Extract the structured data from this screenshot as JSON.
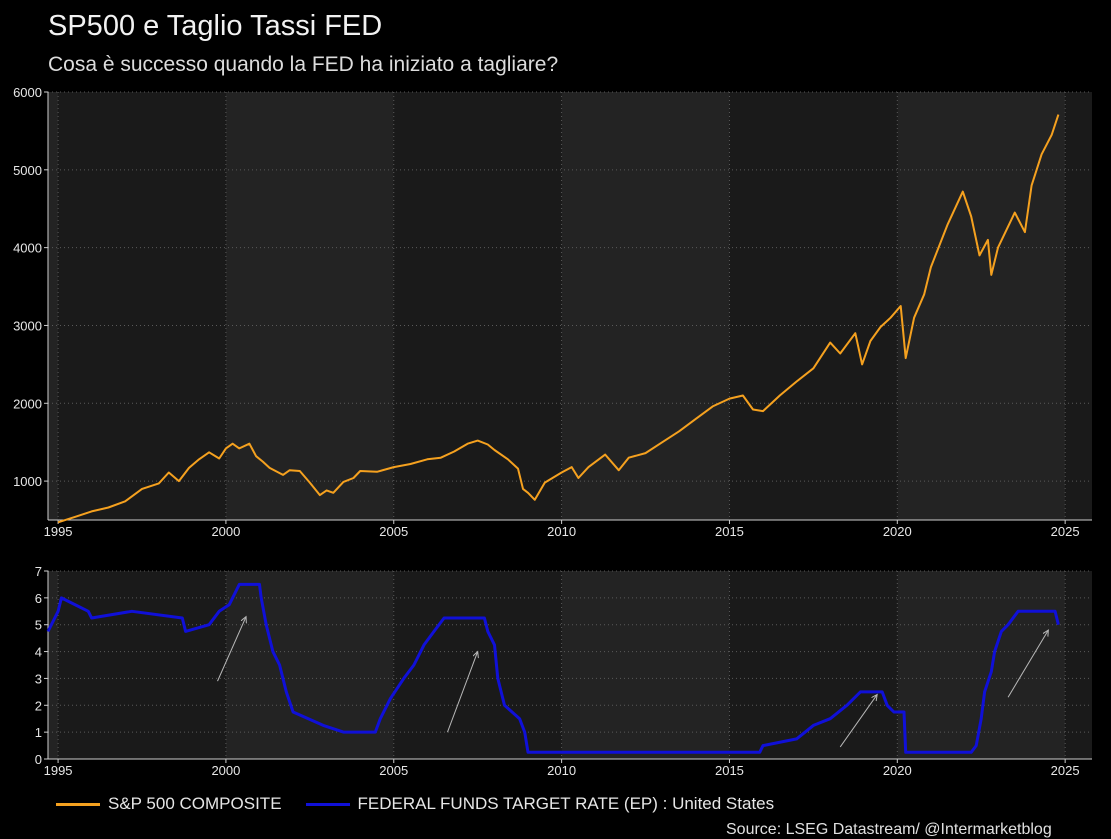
{
  "title": "SP500 e Taglio Tassi FED",
  "subtitle": "Cosa è successo quando la FED ha iniziato a tagliare?",
  "source": "Source: LSEG Datastream/ @Intermarketblog",
  "colors": {
    "sp500": "#f5a11f",
    "fed": "#1010d8",
    "panel_a": "#232323",
    "panel_b": "#1a1a1a",
    "grid": "#5a5a5a"
  },
  "chart_data": [
    {
      "type": "line",
      "panel": "top",
      "x_type": "year",
      "xlim": [
        1994.7,
        2025.8
      ],
      "ylim": [
        500,
        6000
      ],
      "y_ticks": [
        1000,
        2000,
        3000,
        4000,
        5000,
        6000
      ],
      "x_ticks": [
        1995,
        2000,
        2005,
        2010,
        2015,
        2020,
        2025
      ],
      "grid": true,
      "series": [
        {
          "name": "S&P 500 COMPOSITE",
          "color": "#f5a11f",
          "points": [
            [
              1995.0,
              470
            ],
            [
              1995.5,
              540
            ],
            [
              1996.0,
              610
            ],
            [
              1996.5,
              660
            ],
            [
              1997.0,
              740
            ],
            [
              1997.5,
              900
            ],
            [
              1998.0,
              970
            ],
            [
              1998.3,
              1110
            ],
            [
              1998.6,
              1000
            ],
            [
              1998.9,
              1170
            ],
            [
              1999.2,
              1280
            ],
            [
              1999.5,
              1370
            ],
            [
              1999.8,
              1290
            ],
            [
              2000.0,
              1420
            ],
            [
              2000.2,
              1480
            ],
            [
              2000.4,
              1420
            ],
            [
              2000.7,
              1480
            ],
            [
              2000.9,
              1320
            ],
            [
              2001.1,
              1250
            ],
            [
              2001.3,
              1170
            ],
            [
              2001.7,
              1080
            ],
            [
              2001.9,
              1140
            ],
            [
              2002.2,
              1130
            ],
            [
              2002.5,
              980
            ],
            [
              2002.8,
              820
            ],
            [
              2003.0,
              880
            ],
            [
              2003.2,
              850
            ],
            [
              2003.5,
              990
            ],
            [
              2003.8,
              1040
            ],
            [
              2004.0,
              1130
            ],
            [
              2004.5,
              1120
            ],
            [
              2005.0,
              1180
            ],
            [
              2005.5,
              1220
            ],
            [
              2006.0,
              1280
            ],
            [
              2006.4,
              1300
            ],
            [
              2006.8,
              1380
            ],
            [
              2007.2,
              1480
            ],
            [
              2007.5,
              1520
            ],
            [
              2007.8,
              1470
            ],
            [
              2008.0,
              1400
            ],
            [
              2008.4,
              1280
            ],
            [
              2008.7,
              1160
            ],
            [
              2008.85,
              900
            ],
            [
              2009.0,
              850
            ],
            [
              2009.2,
              760
            ],
            [
              2009.5,
              980
            ],
            [
              2010.0,
              1110
            ],
            [
              2010.3,
              1180
            ],
            [
              2010.5,
              1040
            ],
            [
              2010.8,
              1180
            ],
            [
              2011.3,
              1340
            ],
            [
              2011.7,
              1140
            ],
            [
              2012.0,
              1300
            ],
            [
              2012.5,
              1360
            ],
            [
              2013.0,
              1500
            ],
            [
              2013.5,
              1640
            ],
            [
              2014.0,
              1800
            ],
            [
              2014.5,
              1960
            ],
            [
              2015.0,
              2060
            ],
            [
              2015.4,
              2100
            ],
            [
              2015.7,
              1920
            ],
            [
              2016.0,
              1900
            ],
            [
              2016.5,
              2100
            ],
            [
              2017.0,
              2280
            ],
            [
              2017.5,
              2450
            ],
            [
              2018.0,
              2780
            ],
            [
              2018.3,
              2640
            ],
            [
              2018.75,
              2900
            ],
            [
              2018.95,
              2500
            ],
            [
              2019.2,
              2800
            ],
            [
              2019.5,
              2980
            ],
            [
              2019.8,
              3100
            ],
            [
              2020.1,
              3250
            ],
            [
              2020.25,
              2580
            ],
            [
              2020.5,
              3100
            ],
            [
              2020.8,
              3400
            ],
            [
              2021.0,
              3750
            ],
            [
              2021.5,
              4300
            ],
            [
              2021.95,
              4720
            ],
            [
              2022.2,
              4400
            ],
            [
              2022.45,
              3900
            ],
            [
              2022.7,
              4100
            ],
            [
              2022.8,
              3650
            ],
            [
              2023.0,
              4000
            ],
            [
              2023.5,
              4450
            ],
            [
              2023.8,
              4200
            ],
            [
              2024.0,
              4800
            ],
            [
              2024.3,
              5200
            ],
            [
              2024.6,
              5450
            ],
            [
              2024.8,
              5710
            ]
          ]
        }
      ]
    },
    {
      "type": "line",
      "panel": "bottom",
      "x_type": "year",
      "xlim": [
        1994.7,
        2025.8
      ],
      "ylim": [
        0,
        7
      ],
      "y_ticks": [
        0,
        1,
        2,
        3,
        4,
        5,
        6,
        7
      ],
      "x_ticks": [
        1995,
        2000,
        2005,
        2010,
        2015,
        2020,
        2025
      ],
      "grid": true,
      "series": [
        {
          "name": "FEDERAL FUNDS TARGET RATE (EP) : United States",
          "color": "#1010d8",
          "points": [
            [
              1994.7,
              4.75
            ],
            [
              1995.0,
              5.5
            ],
            [
              1995.1,
              6.0
            ],
            [
              1995.5,
              5.75
            ],
            [
              1995.9,
              5.5
            ],
            [
              1996.0,
              5.25
            ],
            [
              1997.2,
              5.5
            ],
            [
              1998.7,
              5.25
            ],
            [
              1998.8,
              4.75
            ],
            [
              1999.5,
              5.0
            ],
            [
              1999.8,
              5.5
            ],
            [
              2000.1,
              5.75
            ],
            [
              2000.4,
              6.5
            ],
            [
              2001.0,
              6.5
            ],
            [
              2001.05,
              6.0
            ],
            [
              2001.2,
              5.0
            ],
            [
              2001.4,
              4.0
            ],
            [
              2001.6,
              3.5
            ],
            [
              2001.8,
              2.5
            ],
            [
              2002.0,
              1.75
            ],
            [
              2002.9,
              1.25
            ],
            [
              2003.5,
              1.0
            ],
            [
              2004.45,
              1.0
            ],
            [
              2004.6,
              1.5
            ],
            [
              2004.9,
              2.25
            ],
            [
              2005.3,
              3.0
            ],
            [
              2005.6,
              3.5
            ],
            [
              2005.9,
              4.25
            ],
            [
              2006.2,
              4.75
            ],
            [
              2006.5,
              5.25
            ],
            [
              2007.7,
              5.25
            ],
            [
              2007.8,
              4.75
            ],
            [
              2008.0,
              4.25
            ],
            [
              2008.1,
              3.0
            ],
            [
              2008.3,
              2.0
            ],
            [
              2008.75,
              1.5
            ],
            [
              2008.9,
              1.0
            ],
            [
              2009.0,
              0.25
            ],
            [
              2015.9,
              0.25
            ],
            [
              2016.0,
              0.5
            ],
            [
              2017.0,
              0.75
            ],
            [
              2017.5,
              1.25
            ],
            [
              2018.0,
              1.5
            ],
            [
              2018.5,
              2.0
            ],
            [
              2018.9,
              2.5
            ],
            [
              2019.55,
              2.5
            ],
            [
              2019.7,
              2.0
            ],
            [
              2019.9,
              1.75
            ],
            [
              2020.2,
              1.75
            ],
            [
              2020.25,
              0.25
            ],
            [
              2022.2,
              0.25
            ],
            [
              2022.35,
              0.5
            ],
            [
              2022.5,
              1.5
            ],
            [
              2022.6,
              2.5
            ],
            [
              2022.8,
              3.25
            ],
            [
              2022.9,
              4.0
            ],
            [
              2023.1,
              4.75
            ],
            [
              2023.3,
              5.0
            ],
            [
              2023.6,
              5.5
            ],
            [
              2024.7,
              5.5
            ],
            [
              2024.8,
              5.0
            ]
          ]
        }
      ],
      "annotations": [
        {
          "type": "arrow",
          "from": [
            1999.75,
            2.9
          ],
          "to": [
            2000.6,
            5.3
          ]
        },
        {
          "type": "arrow",
          "from": [
            2006.6,
            1.0
          ],
          "to": [
            2007.5,
            4.0
          ]
        },
        {
          "type": "arrow",
          "from": [
            2018.3,
            0.45
          ],
          "to": [
            2019.4,
            2.4
          ]
        },
        {
          "type": "arrow",
          "from": [
            2023.3,
            2.3
          ],
          "to": [
            2024.5,
            4.8
          ]
        }
      ]
    }
  ]
}
